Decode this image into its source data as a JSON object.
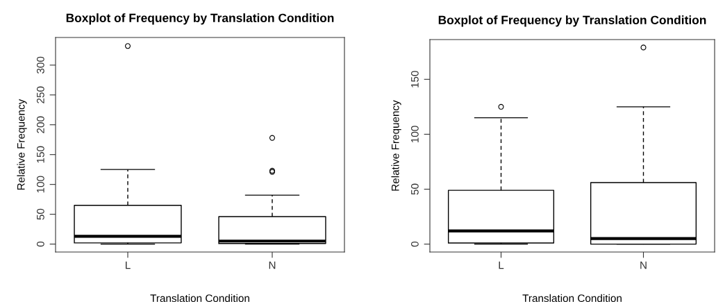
{
  "chart_data": [
    {
      "type": "box",
      "title": "Boxplot of Frequency by Translation Condition",
      "xlabel": "Translation Condition",
      "ylabel": "Relative Frequency",
      "categories": [
        "L",
        "N"
      ],
      "boxes": [
        {
          "low": 0,
          "q1": 2,
          "median": 13,
          "q3": 65,
          "high": 125,
          "outliers": [
            332
          ]
        },
        {
          "low": 0,
          "q1": 1,
          "median": 5,
          "q3": 46,
          "high": 82,
          "outliers": [
            178,
            123,
            121
          ]
        }
      ],
      "ylim": [
        -13.3,
        346.3
      ],
      "yticks": [
        0,
        50,
        100,
        150,
        200,
        250,
        300
      ]
    },
    {
      "type": "box",
      "title": "Boxplot of Frequency by Translation Condition",
      "xlabel": "Translation Condition",
      "ylabel": "Relative Frequency",
      "categories": [
        "L",
        "N"
      ],
      "boxes": [
        {
          "low": 0,
          "q1": 1,
          "median": 12,
          "q3": 49,
          "high": 115,
          "outliers": [
            125
          ]
        },
        {
          "low": 0,
          "q1": 0,
          "median": 5,
          "q3": 56,
          "high": 125,
          "outliers": [
            179
          ]
        }
      ],
      "ylim": [
        -7.2,
        186.2
      ],
      "yticks": [
        0,
        50,
        100,
        150
      ]
    }
  ]
}
